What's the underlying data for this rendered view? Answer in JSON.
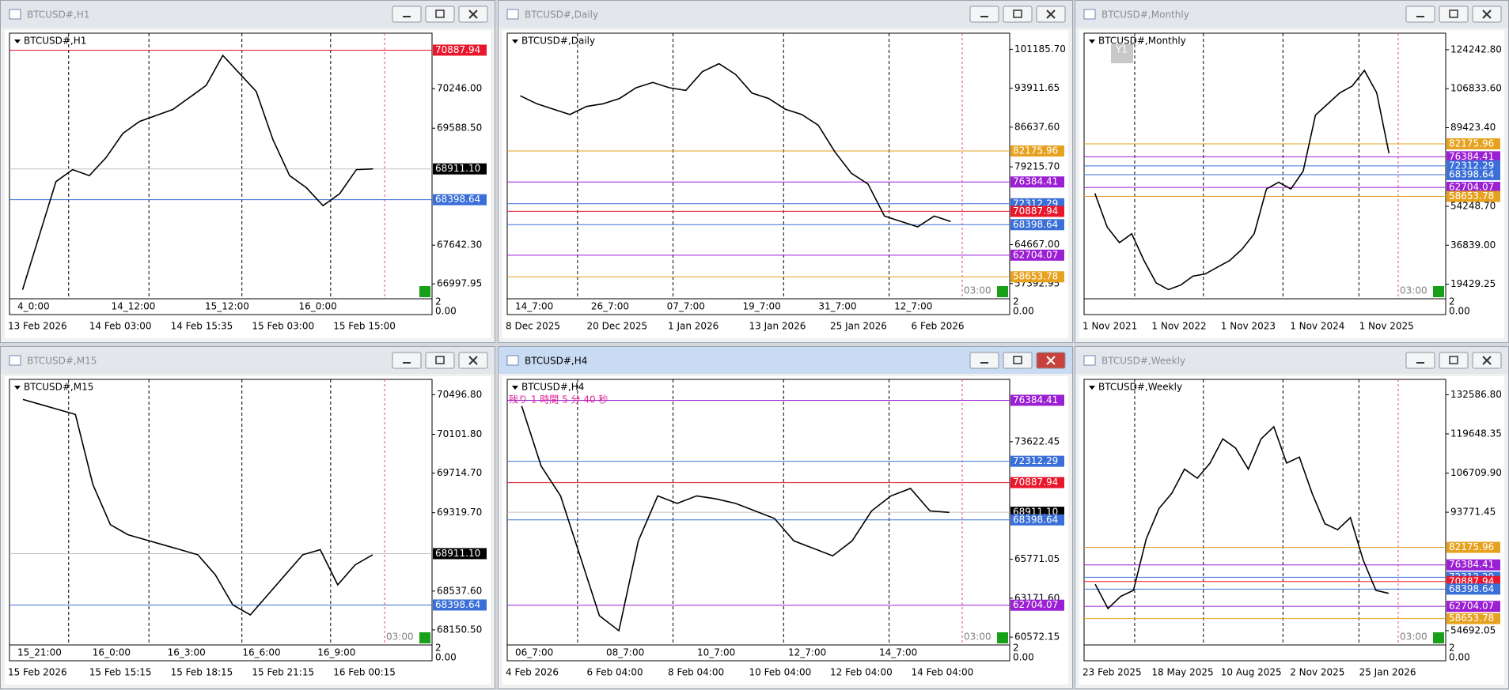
{
  "windows": [
    {
      "title": "BTCUSD#,H1",
      "label": "BTCUSD#,H1",
      "active": false,
      "ylim": [
        66750,
        71170
      ],
      "yticks": [
        {
          "value": 70246,
          "label": "70246.00"
        },
        {
          "value": 69588.5,
          "label": "69588.50"
        },
        {
          "value": 67642.3,
          "label": "67642.30"
        },
        66997.95
      ],
      "levels": [
        {
          "value": 70887.94,
          "color": "#e8172b"
        },
        {
          "value": 68911.1,
          "label": "68911.10",
          "color": "#000000"
        },
        {
          "value": 68398.64,
          "color": "#3a6fd8"
        }
      ],
      "closes": [
        66900,
        67800,
        68700,
        68900,
        68800,
        69100,
        69500,
        69700,
        69800,
        69900,
        70100,
        70300,
        70800,
        70500,
        70200,
        69400,
        68800,
        68600,
        68300,
        68500,
        68900,
        68911
      ],
      "time_marks": [
        "4_0:00",
        "14_12:00",
        "15_12:00",
        "16_0:00"
      ],
      "dates": [
        "13 Feb 2026",
        "14 Feb 03:00",
        "14 Feb 15:35",
        "15 Feb 03:00",
        "15 Feb 15:00"
      ],
      "corner": [
        "2",
        "0.00"
      ]
    },
    {
      "title": "BTCUSD#,Daily",
      "label": "BTCUSD#,Daily",
      "active": false,
      "ylim": [
        54550,
        104200
      ],
      "yticks": [
        {
          "value": 101185.7,
          "label": "101185.70"
        },
        93911.65,
        {
          "value": 86637.6,
          "label": "86637.60"
        },
        {
          "value": 79215.7,
          "label": "79215.70"
        },
        {
          "value": 64667,
          "label": "64667.00"
        },
        57392.95
      ],
      "levels": [
        {
          "value": 82175.96,
          "color": "#e6a21f"
        },
        {
          "value": 76384.41,
          "color": "#9b1fd3"
        },
        {
          "value": 72312.29,
          "color": "#3a6fd8"
        },
        {
          "value": 70887.94,
          "color": "#e8172b"
        },
        {
          "value": 68398.64,
          "color": "#3a6fd8"
        },
        {
          "value": 62704.07,
          "color": "#9b1fd3"
        },
        {
          "value": 58653.78,
          "color": "#e6a21f"
        }
      ],
      "closes": [
        92500,
        91000,
        90000,
        89000,
        90500,
        91000,
        92000,
        94000,
        95000,
        94000,
        93500,
        97000,
        98500,
        96500,
        93000,
        92000,
        90000,
        89000,
        87000,
        82000,
        78000,
        76000,
        70000,
        69000,
        68000,
        70000,
        69000
      ],
      "countdown": "03:00",
      "time_marks": [
        "14_7:00",
        "26_7:00",
        "07_7:00",
        "19_7:00",
        "31_7:00",
        "12_7:00"
      ],
      "dates": [
        "8 Dec 2025",
        "20 Dec 2025",
        "1 Jan 2026",
        "13 Jan 2026",
        "25 Jan 2026",
        "6 Feb 2026"
      ],
      "corner": [
        "2",
        "0.00"
      ]
    },
    {
      "title": "BTCUSD#,Monthly",
      "label": "BTCUSD#,Monthly",
      "active": false,
      "button": "Y1",
      "ylim": [
        12900,
        131640
      ],
      "yticks": [
        {
          "value": 124242.8,
          "label": "124242.80"
        },
        {
          "value": 106833.6,
          "label": "106833.60"
        },
        {
          "value": 89423.4,
          "label": "89423.40"
        },
        {
          "value": 54248.7,
          "label": "54248.70"
        },
        {
          "value": 36839,
          "label": "36839.00"
        },
        19429.25
      ],
      "levels": [
        {
          "value": 82175.96,
          "color": "#e6a21f"
        },
        {
          "value": 76384.41,
          "color": "#9b1fd3"
        },
        {
          "value": 72312.29,
          "color": "#3a6fd8"
        },
        {
          "value": 68398.64,
          "color": "#3a6fd8"
        },
        {
          "value": 62704.07,
          "color": "#9b1fd3"
        },
        {
          "value": 58653.78,
          "color": "#e6a21f"
        }
      ],
      "closes": [
        60000,
        45000,
        38000,
        42000,
        30000,
        20000,
        17000,
        19000,
        23000,
        24000,
        27000,
        30000,
        35000,
        42000,
        62000,
        65000,
        62000,
        70000,
        95000,
        100000,
        105000,
        108000,
        115000,
        105000,
        78000
      ],
      "countdown": "03:00",
      "dates": [
        "1 Nov 2021",
        "1 Nov 2022",
        "1 Nov 2023",
        "1 Nov 2024",
        "1 Nov 2025"
      ],
      "corner": [
        "2",
        "0.00"
      ]
    },
    {
      "title": "BTCUSD#,M15",
      "label": "BTCUSD#,M15",
      "active": false,
      "ylim": [
        68000,
        70650
      ],
      "yticks": [
        {
          "value": 70496.8,
          "label": "70496.80"
        },
        {
          "value": 70101.8,
          "label": "70101.80"
        },
        {
          "value": 69714.7,
          "label": "69714.70"
        },
        {
          "value": 69319.7,
          "label": "69319.70"
        },
        {
          "value": 68537.6,
          "label": "68537.60"
        },
        {
          "value": 68150.5,
          "label": "68150.50"
        }
      ],
      "levels": [
        {
          "value": 68911.1,
          "label": "68911.10",
          "color": "#000000"
        },
        {
          "value": 68398.64,
          "color": "#3a6fd8"
        }
      ],
      "closes": [
        70450,
        70400,
        70350,
        70300,
        69600,
        69200,
        69100,
        69050,
        69000,
        68950,
        68900,
        68700,
        68400,
        68300,
        68500,
        68700,
        68900,
        68950,
        68600,
        68800,
        68900
      ],
      "countdown": "03:00",
      "time_marks": [
        "15_21:00",
        "16_0:00",
        "16_3:00",
        "16_6:00",
        "16_9:00"
      ],
      "dates": [
        "15 Feb 2026",
        "15 Feb 15:15",
        "15 Feb 18:15",
        "15 Feb 21:15",
        "16 Feb 00:15"
      ],
      "corner": [
        "2",
        "0.00"
      ]
    },
    {
      "title": "BTCUSD#,H4",
      "label": "BTCUSD#,H4",
      "active": true,
      "timer": "残り 1 時間 5 分 40 秒",
      "ylim": [
        60050,
        77780
      ],
      "yticks": [
        73622.45,
        65771.05,
        {
          "value": 63171.6,
          "label": "63171.60"
        },
        60572.15
      ],
      "levels": [
        {
          "value": 76384.41,
          "color": "#9b1fd3"
        },
        {
          "value": 72312.29,
          "color": "#3a6fd8"
        },
        {
          "value": 70887.94,
          "color": "#e8172b"
        },
        {
          "value": 68911.1,
          "label": "68911.10",
          "color": "#000000"
        },
        {
          "value": 68398.64,
          "color": "#3a6fd8"
        },
        {
          "value": 62704.07,
          "color": "#9b1fd3"
        }
      ],
      "closes": [
        76000,
        72000,
        70000,
        66000,
        62000,
        61000,
        67000,
        70000,
        69500,
        70000,
        69800,
        69500,
        69000,
        68500,
        67000,
        66500,
        66000,
        67000,
        69000,
        70000,
        70500,
        69000,
        68900
      ],
      "countdown": "03:00",
      "time_marks": [
        "06_7:00",
        "08_7:00",
        "10_7:00",
        "12_7:00",
        "14_7:00"
      ],
      "dates": [
        "4 Feb 2026",
        "6 Feb 04:00",
        "8 Feb 04:00",
        "10 Feb 04:00",
        "12 Feb 04:00",
        "14 Feb 04:00"
      ],
      "corner": [
        "2",
        "0.00"
      ]
    },
    {
      "title": "BTCUSD#,Weekly",
      "label": "BTCUSD#,Weekly",
      "active": false,
      "ylim": [
        49960,
        137640
      ],
      "yticks": [
        {
          "value": 132586.8,
          "label": "132586.80"
        },
        119648.35,
        {
          "value": 106709.9,
          "label": "106709.90"
        },
        93771.45,
        54692.05
      ],
      "levels": [
        {
          "value": 82175.96,
          "color": "#e6a21f"
        },
        {
          "value": 76384.41,
          "color": "#9b1fd3"
        },
        {
          "value": 72312.29,
          "color": "#3a6fd8"
        },
        {
          "value": 70887.94,
          "color": "#e8172b"
        },
        {
          "value": 68398.64,
          "color": "#3a6fd8"
        },
        {
          "value": 62704.07,
          "color": "#9b1fd3"
        },
        {
          "value": 58653.78,
          "color": "#e6a21f"
        }
      ],
      "closes": [
        70000,
        62000,
        66000,
        68000,
        85000,
        95000,
        100000,
        108000,
        105000,
        110000,
        118000,
        115000,
        108000,
        118000,
        122000,
        110000,
        112000,
        100000,
        90000,
        88000,
        92000,
        78000,
        68000,
        67000
      ],
      "countdown": "03:00",
      "dates": [
        "23 Feb 2025",
        "18 May 2025",
        "10 Aug 2025",
        "2 Nov 2025",
        "25 Jan 2026"
      ],
      "corner": [
        "2",
        "0.00"
      ]
    }
  ]
}
